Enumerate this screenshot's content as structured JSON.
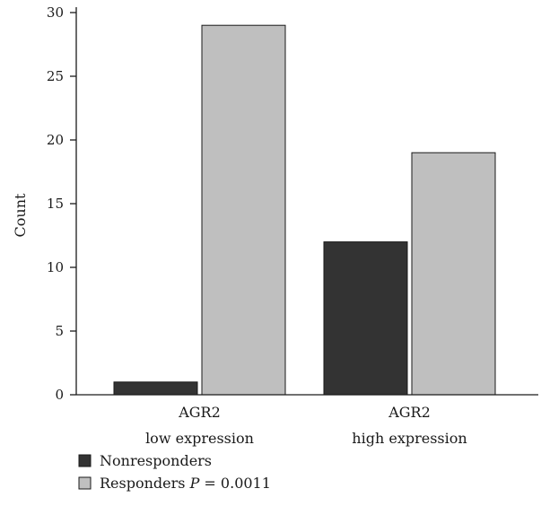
{
  "chart_data": {
    "type": "bar",
    "title": "",
    "xlabel": "",
    "ylabel": "Count",
    "ylim": [
      0,
      30
    ],
    "yticks": [
      0,
      5,
      10,
      15,
      20,
      25,
      30
    ],
    "grid": false,
    "legend_position": "bottom-left",
    "categories": [
      {
        "line1": "AGR2",
        "line2": "low expression"
      },
      {
        "line1": "AGR2",
        "line2": "high expression"
      }
    ],
    "series": [
      {
        "name": "Nonresponders",
        "values": [
          1,
          12
        ],
        "color": "#333333"
      },
      {
        "name": "Responders",
        "values": [
          29,
          19
        ],
        "color": "#bfbfbf"
      }
    ],
    "annotation": {
      "prefix": "P",
      "text": " = 0.0011"
    }
  }
}
